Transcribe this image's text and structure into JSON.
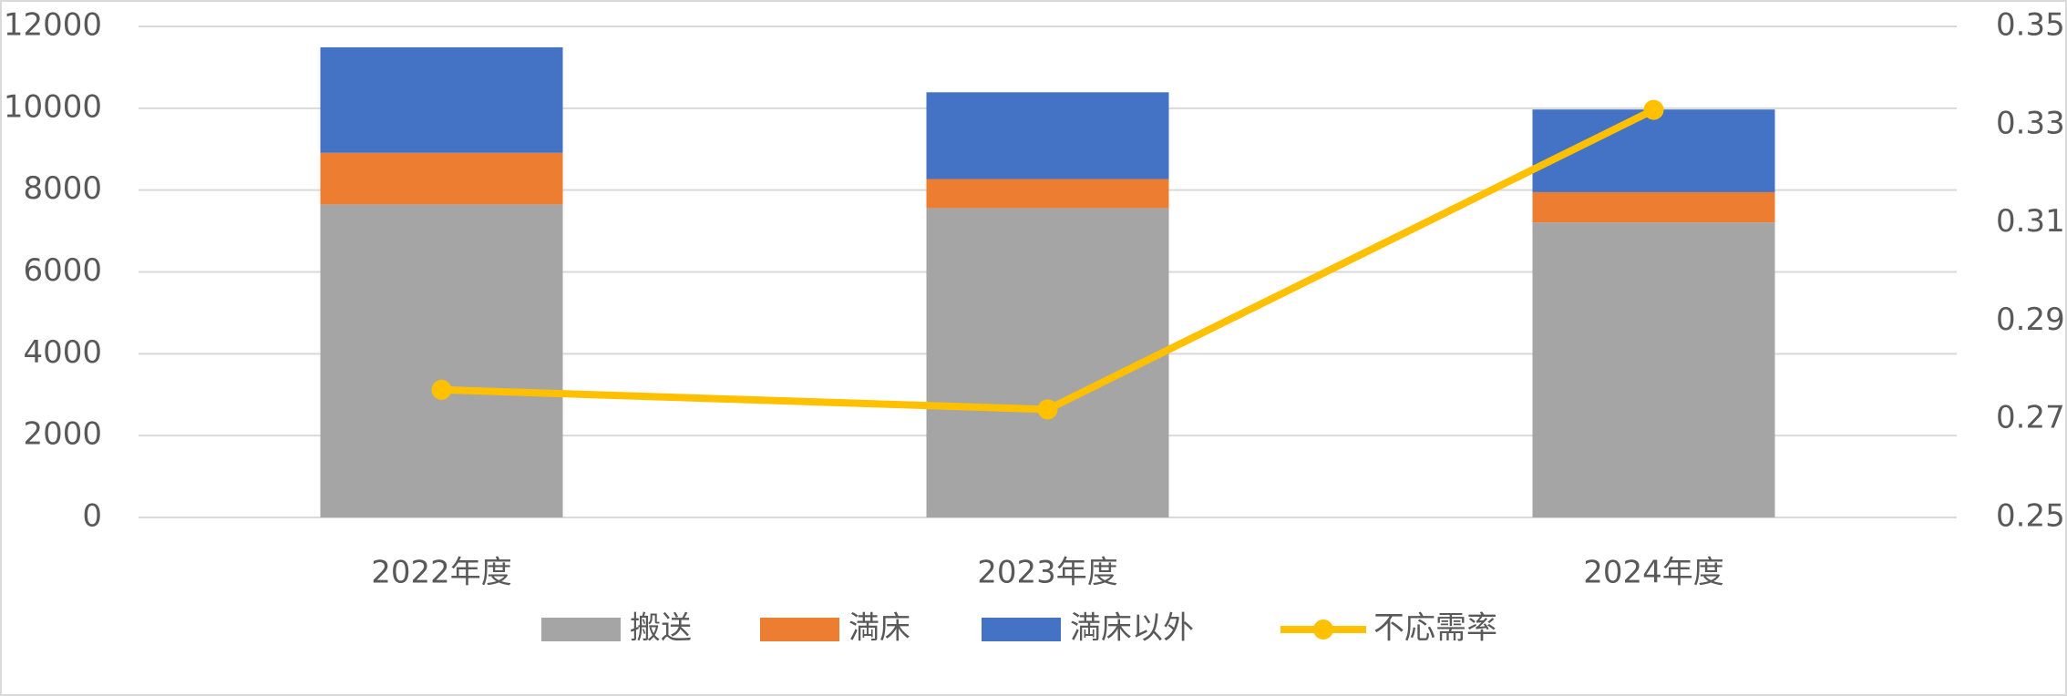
{
  "chart_data": {
    "type": "bar",
    "stacked": true,
    "categories": [
      "2022年度",
      "2023年度",
      "2024年度"
    ],
    "series": [
      {
        "name": "搬送",
        "color": "#a5a5a5",
        "values": [
          7650,
          7560,
          7210
        ]
      },
      {
        "name": "満床",
        "color": "#ed7d31",
        "values": [
          1260,
          710,
          740
        ]
      },
      {
        "name": "満床以外",
        "color": "#4472c4",
        "values": [
          2580,
          2120,
          2020
        ]
      },
      {
        "name": "不応需率",
        "type": "line",
        "axis": "y2",
        "color": "#ffc000",
        "values": [
          0.276,
          0.272,
          0.333
        ]
      }
    ],
    "ylim": [
      0,
      12000
    ],
    "yticks": [
      0,
      2000,
      4000,
      6000,
      8000,
      10000,
      12000
    ],
    "y2lim": [
      0.25,
      0.35
    ],
    "y2ticks": [
      0.25,
      0.27,
      0.29,
      0.31,
      0.33,
      0.35
    ],
    "grid": true,
    "legend": "bottom"
  }
}
